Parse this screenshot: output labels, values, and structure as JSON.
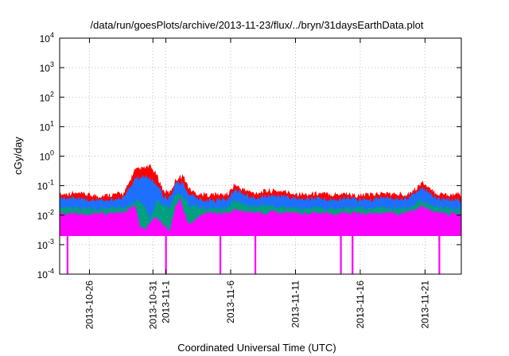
{
  "chart_data": {
    "type": "line",
    "title": "/data/run/goesPlots/archive/2013-11-23/flux/../bryn/31daysEarthData.plot",
    "xlabel": "Coordinated Universal Time (UTC)",
    "ylabel": "cGy/day",
    "yscale": "log",
    "ylim": [
      0.0001,
      10000
    ],
    "xlim": [
      0,
      31
    ],
    "grid": true,
    "yticks": [
      {
        "value": 0.0001,
        "base": "10",
        "exp": "-4"
      },
      {
        "value": 0.001,
        "base": "10",
        "exp": "-3"
      },
      {
        "value": 0.01,
        "base": "10",
        "exp": "-2"
      },
      {
        "value": 0.1,
        "base": "10",
        "exp": "-1"
      },
      {
        "value": 1,
        "base": "10",
        "exp": "0"
      },
      {
        "value": 10,
        "base": "10",
        "exp": "1"
      },
      {
        "value": 100,
        "base": "10",
        "exp": "2"
      },
      {
        "value": 1000,
        "base": "10",
        "exp": "3"
      },
      {
        "value": 10000,
        "base": "10",
        "exp": "4"
      }
    ],
    "xticks": [
      {
        "day": 2.3,
        "label": "2013-10-26"
      },
      {
        "day": 7.2,
        "label": "2013-10-31"
      },
      {
        "day": 8.2,
        "label": "2013-11-1"
      },
      {
        "day": 13.2,
        "label": "2013-11-6"
      },
      {
        "day": 18.2,
        "label": "2013-11-11"
      },
      {
        "day": 23.2,
        "label": "2013-11-16"
      },
      {
        "day": 28.2,
        "label": "2013-11-21"
      }
    ],
    "series": [
      {
        "color": "#ff0000",
        "x": [
          0,
          1,
          2,
          3,
          4,
          5,
          5.8,
          6.5,
          7,
          7.5,
          8,
          8.5,
          9,
          9.5,
          10,
          10.5,
          11,
          12,
          13,
          13.5,
          14,
          14.5,
          15,
          16,
          17,
          18,
          19,
          20,
          21,
          22,
          23,
          24,
          25,
          26,
          27,
          27.5,
          28,
          28.5,
          29,
          30,
          31
        ],
        "values": [
          0.045,
          0.05,
          0.045,
          0.04,
          0.045,
          0.05,
          0.3,
          0.35,
          0.4,
          0.2,
          0.06,
          0.05,
          0.15,
          0.2,
          0.07,
          0.05,
          0.045,
          0.045,
          0.045,
          0.1,
          0.07,
          0.06,
          0.05,
          0.06,
          0.06,
          0.05,
          0.045,
          0.05,
          0.045,
          0.05,
          0.04,
          0.045,
          0.05,
          0.045,
          0.05,
          0.07,
          0.12,
          0.07,
          0.05,
          0.045,
          0.045
        ]
      },
      {
        "color": "#1e6fff",
        "x": [
          0,
          1,
          2,
          3,
          4,
          5,
          5.8,
          6.5,
          7,
          7.5,
          8,
          8.5,
          9,
          9.5,
          10,
          10.5,
          11,
          12,
          13,
          13.5,
          14,
          14.5,
          15,
          16,
          17,
          18,
          19,
          20,
          21,
          22,
          23,
          24,
          25,
          26,
          27,
          27.5,
          28,
          28.5,
          29,
          30,
          31
        ],
        "values": [
          0.03,
          0.035,
          0.03,
          0.03,
          0.03,
          0.035,
          0.15,
          0.2,
          0.15,
          0.1,
          0.04,
          0.035,
          0.1,
          0.12,
          0.045,
          0.035,
          0.03,
          0.03,
          0.03,
          0.07,
          0.05,
          0.04,
          0.035,
          0.04,
          0.04,
          0.035,
          0.03,
          0.035,
          0.03,
          0.035,
          0.03,
          0.03,
          0.035,
          0.03,
          0.035,
          0.05,
          0.08,
          0.05,
          0.035,
          0.03,
          0.03
        ]
      },
      {
        "color": "#00a080",
        "x": [
          0,
          1,
          2,
          3,
          4,
          5,
          6,
          6.5,
          7,
          7.5,
          8,
          8.5,
          9,
          9.5,
          10,
          11,
          12,
          13,
          13.5,
          14,
          15,
          16,
          17,
          18,
          19,
          20,
          21,
          22,
          23,
          24,
          25,
          26,
          27,
          28,
          28.5,
          29,
          30,
          31
        ],
        "values": [
          0.015,
          0.016,
          0.015,
          0.015,
          0.015,
          0.016,
          0.03,
          0.02,
          0.006,
          0.03,
          0.02,
          0.016,
          0.05,
          0.04,
          0.02,
          0.016,
          0.015,
          0.016,
          0.03,
          0.022,
          0.018,
          0.018,
          0.017,
          0.016,
          0.015,
          0.016,
          0.015,
          0.016,
          0.015,
          0.015,
          0.016,
          0.015,
          0.016,
          0.03,
          0.022,
          0.017,
          0.015,
          0.015
        ]
      },
      {
        "color": "#ff00ff",
        "x": [
          0,
          1,
          2,
          3,
          4,
          5,
          5.8,
          6.2,
          6.5,
          7,
          7.5,
          8,
          8.5,
          9,
          9.3,
          9.5,
          10,
          11,
          12,
          13,
          13.5,
          14,
          15,
          16,
          17,
          18,
          19,
          20,
          21,
          22,
          23,
          24,
          25,
          26,
          27,
          28,
          28.5,
          29,
          30,
          31
        ],
        "values": [
          0.01,
          0.011,
          0.01,
          0.01,
          0.01,
          0.011,
          0.02,
          0.004,
          0.003,
          0.005,
          0.008,
          0.004,
          0.003,
          0.02,
          0.04,
          0.015,
          0.004,
          0.01,
          0.01,
          0.011,
          0.015,
          0.012,
          0.011,
          0.011,
          0.011,
          0.01,
          0.01,
          0.011,
          0.01,
          0.011,
          0.01,
          0.01,
          0.011,
          0.01,
          0.011,
          0.018,
          0.014,
          0.011,
          0.01,
          0.01
        ]
      }
    ],
    "floor_band": {
      "color": "#ff00ff",
      "ymin": 0.002,
      "ymax": 0.004
    },
    "spikes": [
      {
        "day": 0.6,
        "ymin": 0.0001,
        "ymax": 0.002
      },
      {
        "day": 8.2,
        "ymin": 0.0001,
        "ymax": 0.002
      },
      {
        "day": 12.4,
        "ymin": 0.0001,
        "ymax": 0.002
      },
      {
        "day": 15.1,
        "ymin": 0.0001,
        "ymax": 0.002
      },
      {
        "day": 21.7,
        "ymin": 0.0001,
        "ymax": 0.002
      },
      {
        "day": 22.6,
        "ymin": 0.0001,
        "ymax": 0.002
      },
      {
        "day": 29.3,
        "ymin": 0.0001,
        "ymax": 0.002
      }
    ]
  }
}
